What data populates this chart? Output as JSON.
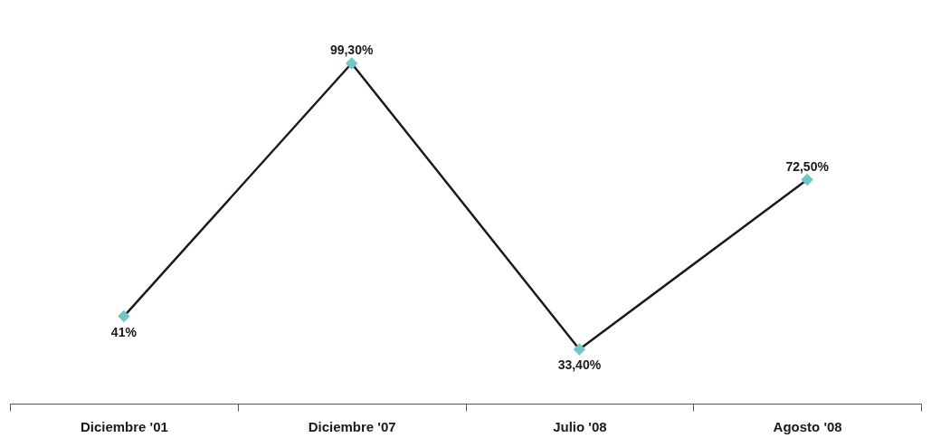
{
  "chart_data": {
    "type": "line",
    "categories": [
      "Diciembre '01",
      "Diciembre '07",
      "Julio '08",
      "Agosto '08"
    ],
    "series": [
      {
        "color": "#1a1a1a",
        "colors": [
          "#6fc8c8",
          "#6fc8c8",
          "#6fc8c8",
          "#6fc8c8"
        ],
        "values": [
          41,
          99.3,
          33.4,
          72.5
        ],
        "value_labels": [
          "41%",
          "99,30%",
          "33,40%",
          "72,50%"
        ]
      }
    ],
    "marker": "diamond",
    "line_style": "solid",
    "grid": false,
    "tick_labels": "x"
  }
}
